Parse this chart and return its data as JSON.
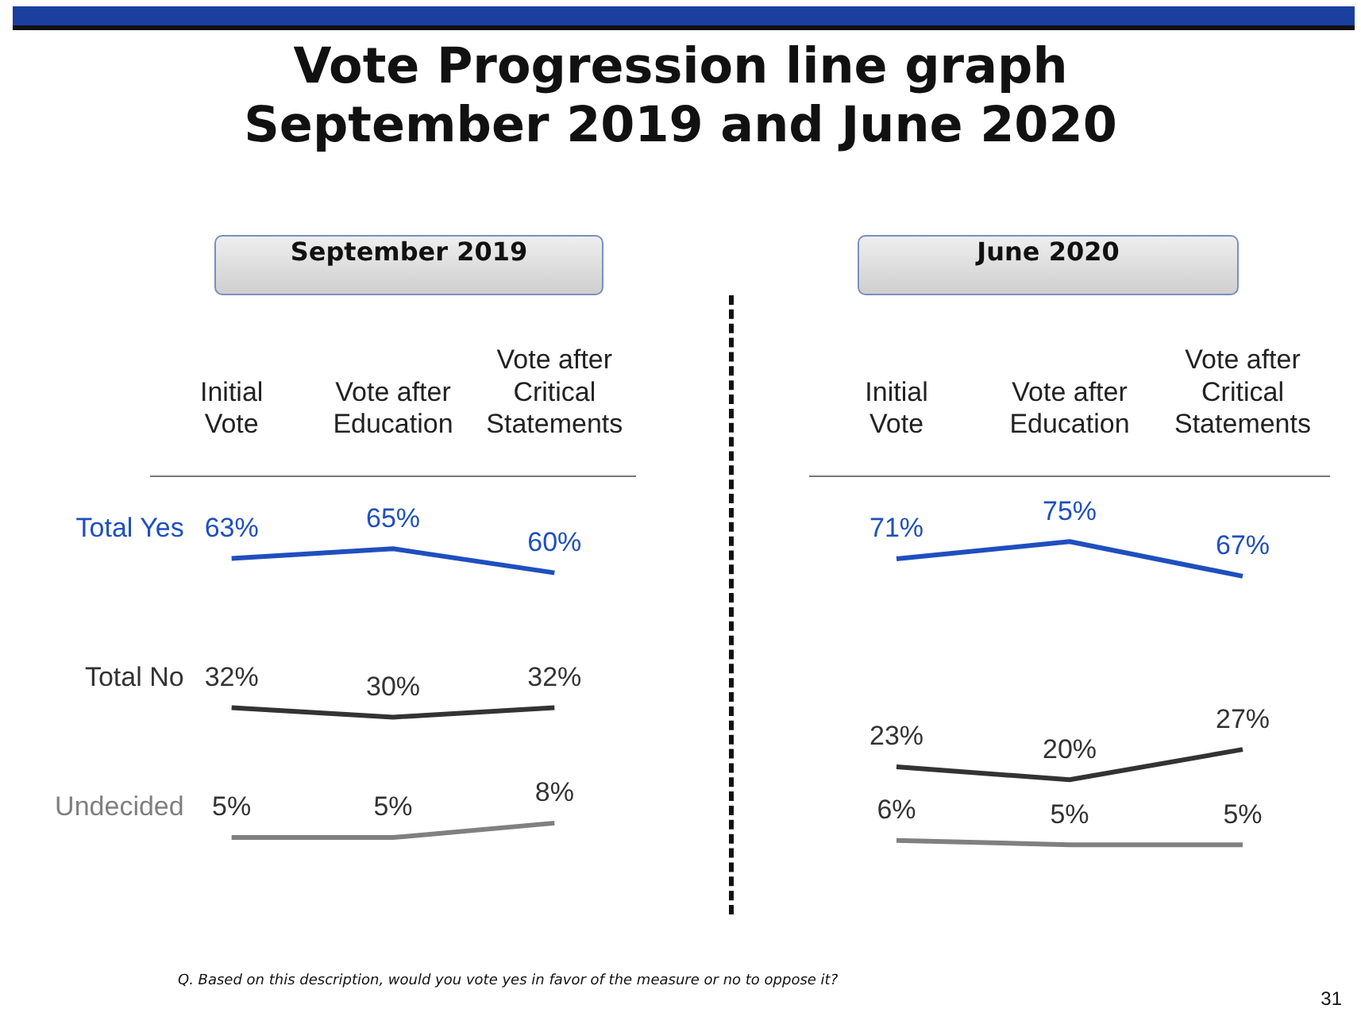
{
  "chart_data": [
    {
      "type": "line",
      "title": "Vote Progression line graph\nSeptember 2019 and June 2020",
      "subtitle": "September 2019",
      "categories": [
        "Initial Vote",
        "Vote after Education",
        "Vote after Critical Statements"
      ],
      "series": [
        {
          "name": "Total Yes",
          "color": "#1f4fbf",
          "values": [
            63,
            65,
            60
          ],
          "value_labels": [
            "63%",
            "65%",
            "60%"
          ]
        },
        {
          "name": "Total No",
          "color": "#333333",
          "values": [
            32,
            30,
            32
          ],
          "value_labels": [
            "32%",
            "30%",
            "32%"
          ]
        },
        {
          "name": "Undecided",
          "color": "#808080",
          "values": [
            5,
            5,
            8
          ],
          "value_labels": [
            "5%",
            "5%",
            "8%"
          ]
        }
      ],
      "tick_labels": "x",
      "legend": false,
      "grid": false,
      "marker": "none",
      "line_style": "solid",
      "annotations": [
        "Q. Based on this description, would you vote yes in favor of the measure or no to oppose it?",
        "31"
      ]
    },
    {
      "type": "line",
      "subtitle": "June 2020",
      "categories": [
        "Initial Vote",
        "Vote after Education",
        "Vote after Critical Statements"
      ],
      "series": [
        {
          "color": "#1f4fbf",
          "values": [
            71,
            75,
            67
          ],
          "value_labels": [
            "71%",
            "75%",
            "67%"
          ]
        },
        {
          "color": "#333333",
          "values": [
            23,
            20,
            27
          ],
          "value_labels": [
            "23%",
            "20%",
            "27%"
          ]
        },
        {
          "color": "#808080",
          "values": [
            6,
            5,
            5
          ],
          "value_labels": [
            "6%",
            "5%",
            "5%"
          ]
        }
      ],
      "tick_labels": "x",
      "legend": false,
      "grid": false,
      "marker": "none",
      "line_style": "solid"
    }
  ]
}
